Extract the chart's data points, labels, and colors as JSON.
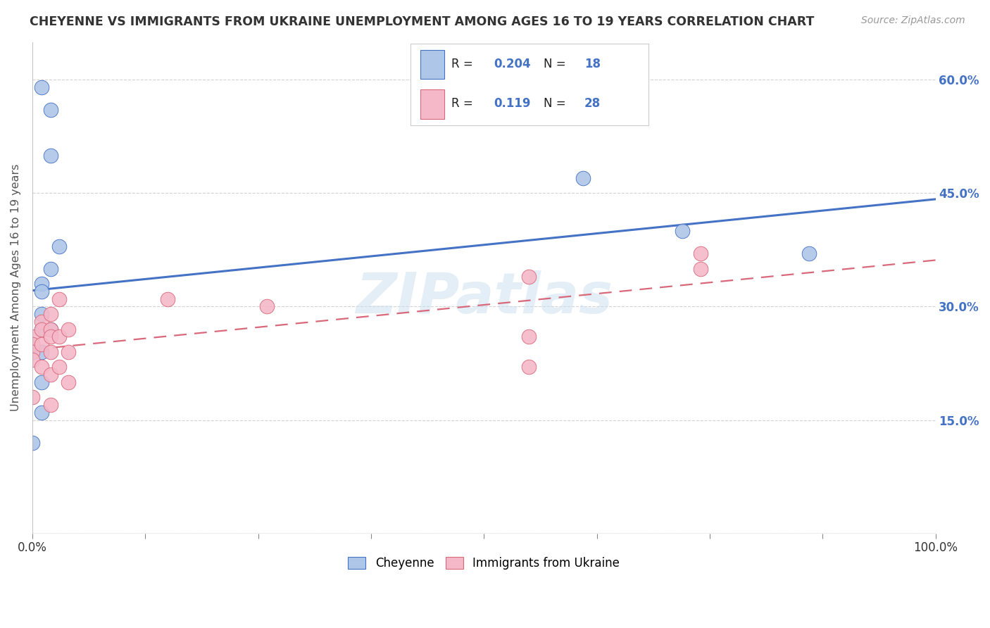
{
  "title": "CHEYENNE VS IMMIGRANTS FROM UKRAINE UNEMPLOYMENT AMONG AGES 16 TO 19 YEARS CORRELATION CHART",
  "source": "Source: ZipAtlas.com",
  "ylabel": "Unemployment Among Ages 16 to 19 years",
  "xlim": [
    0,
    100
  ],
  "ylim": [
    0,
    65
  ],
  "yticks": [
    0,
    15,
    30,
    45,
    60
  ],
  "ytick_labels": [
    "",
    "15.0%",
    "30.0%",
    "45.0%",
    "60.0%"
  ],
  "watermark": "ZIPatlas",
  "legend_blue_r": "0.204",
  "legend_blue_n": "18",
  "legend_pink_r": "0.119",
  "legend_pink_n": "28",
  "blue_color": "#aec6e8",
  "pink_color": "#f5b8c8",
  "line_blue": "#4472c4",
  "line_pink": "#d9687a",
  "label_color": "#4472c4",
  "cheyenne_x": [
    1,
    2,
    2,
    3,
    2,
    1,
    1,
    1,
    1,
    0,
    1,
    1,
    2,
    1,
    0,
    61,
    72,
    86
  ],
  "cheyenne_y": [
    59,
    56,
    50,
    38,
    35,
    33,
    32,
    29,
    27,
    25,
    24,
    20,
    27,
    16,
    12,
    47,
    40,
    37
  ],
  "ukraine_x": [
    0,
    0,
    0,
    0,
    0,
    1,
    1,
    1,
    1,
    2,
    2,
    2,
    2,
    2,
    2,
    3,
    3,
    3,
    4,
    4,
    4,
    15,
    26,
    55,
    55,
    55,
    74,
    74
  ],
  "ukraine_y": [
    26,
    25,
    24,
    23,
    18,
    28,
    27,
    25,
    22,
    29,
    27,
    26,
    24,
    21,
    17,
    31,
    26,
    22,
    27,
    24,
    20,
    31,
    30,
    34,
    26,
    22,
    37,
    35
  ],
  "background_color": "#ffffff",
  "grid_color": "#c8c8c8"
}
